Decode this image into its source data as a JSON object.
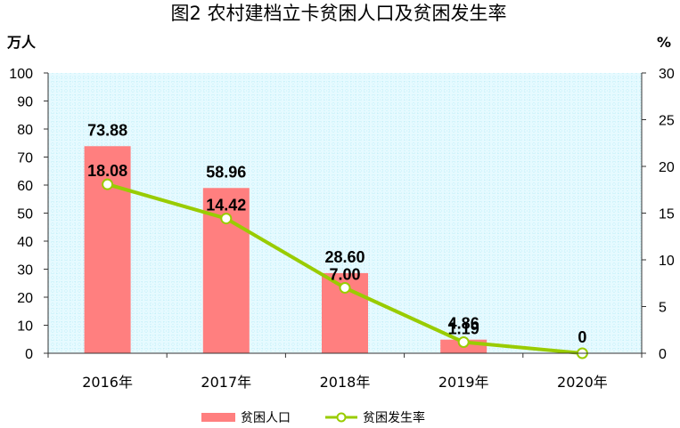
{
  "chart_data": {
    "type": "bar+line",
    "title": "图2   农村建档立卡贫困人口及贫困发生率",
    "ylabel_left": "万人",
    "ylabel_right": "%",
    "categories": [
      "2016年",
      "2017年",
      "2018年",
      "2019年",
      "2020年"
    ],
    "ylim_left": [
      0,
      100
    ],
    "ylim_right": [
      0,
      30
    ],
    "yticks_left": [
      "0",
      "10",
      "20",
      "30",
      "40",
      "50",
      "60",
      "70",
      "80",
      "90",
      "100"
    ],
    "yticks_right": [
      "0",
      "5",
      "10",
      "15",
      "20",
      "25",
      "30"
    ],
    "series": [
      {
        "name": "贫困人口",
        "type": "bar",
        "axis": "left",
        "values": [
          73.88,
          58.96,
          28.6,
          4.86,
          0
        ],
        "labels": [
          "73.88",
          "58.96",
          "28.60",
          "4.86",
          "0"
        ]
      },
      {
        "name": "贫困发生率",
        "type": "line",
        "axis": "right",
        "values": [
          18.08,
          14.42,
          7.0,
          1.19,
          0
        ],
        "labels": [
          "18.08",
          "14.42",
          "7.00",
          "1.19",
          ""
        ]
      }
    ],
    "grid": true,
    "legend": "bottom",
    "colors": {
      "bar": "#FF7F7F",
      "line": "#99CC00",
      "plot_bg": "#E6FAFF",
      "grid": "#A6E6F2"
    }
  }
}
